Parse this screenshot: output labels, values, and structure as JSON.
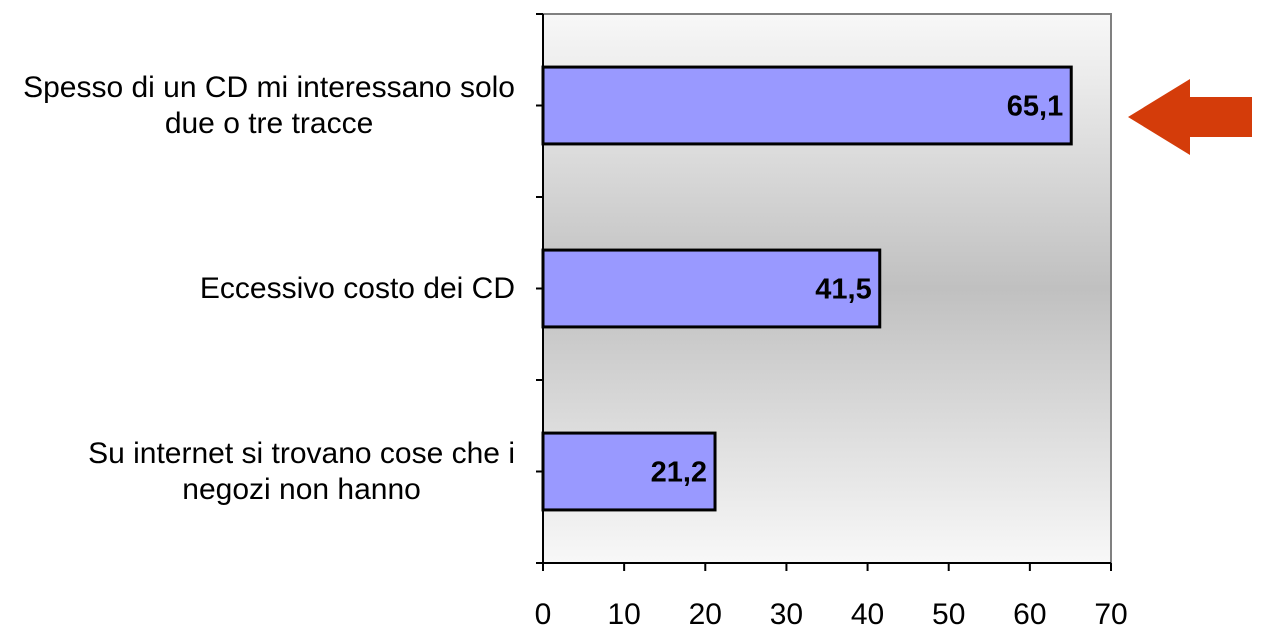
{
  "chart_data": {
    "type": "bar",
    "orientation": "horizontal",
    "categories": [
      [
        "Spesso di un CD mi interessano solo",
        "due o tre tracce"
      ],
      [
        "Eccessivo costo dei CD"
      ],
      [
        "Su internet si trovano cose che i",
        "negozi non hanno"
      ]
    ],
    "values": [
      65.1,
      41.5,
      21.2
    ],
    "value_labels": [
      "65,1",
      "41,5",
      "21,2"
    ],
    "xlim": [
      0,
      70
    ],
    "xticks": [
      "0",
      "10",
      "20",
      "30",
      "40",
      "50",
      "60",
      "70"
    ],
    "grid": false,
    "legend": "none",
    "bar_color": "#9999ff",
    "plot_background": "gradient #f8f8f8 → #c0c0c0 → #f8f8f8",
    "annotation": {
      "type": "arrow",
      "direction": "left",
      "color": "#d43c0a",
      "points_to": "Spesso di un CD mi interessano solo due o tre tracce"
    }
  }
}
